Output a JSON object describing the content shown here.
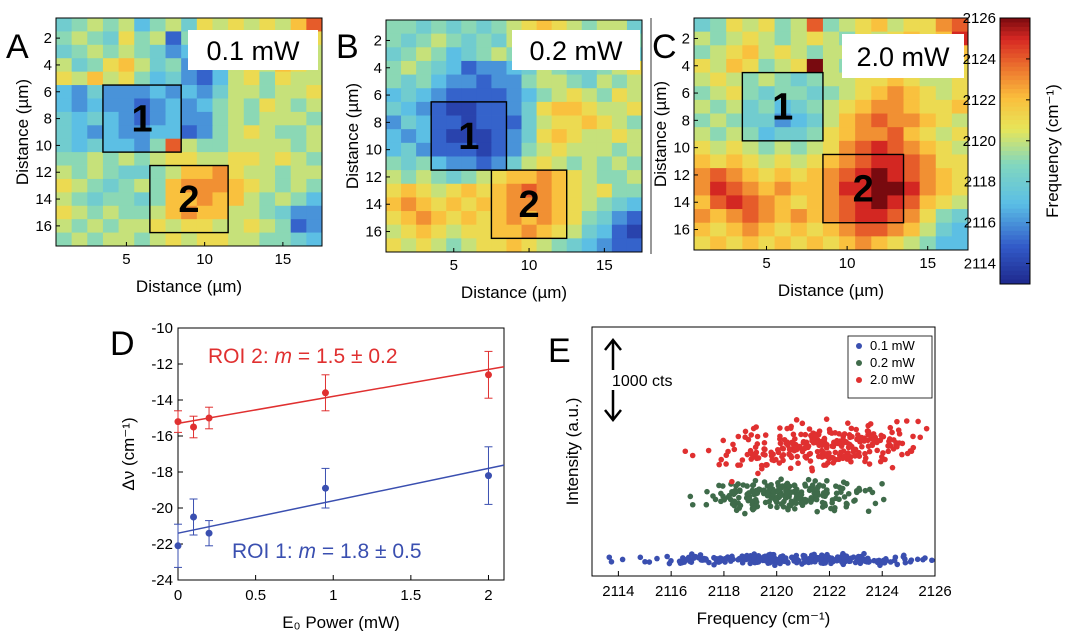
{
  "chart_data": [
    {
      "panel": "A",
      "type": "heatmap",
      "label": "0.1 mW",
      "xlabel": "Distance (µm)",
      "ylabel": "Distance (µm)",
      "xticks": [
        5,
        10,
        15
      ],
      "yticks": [
        2,
        4,
        6,
        8,
        10,
        12,
        14,
        16
      ],
      "roi_labels": [
        "1",
        "2"
      ],
      "grid": [
        [
          2118,
          2119,
          2120,
          2119,
          2120,
          2117,
          2119,
          2120,
          2118,
          2121,
          2120,
          2121,
          2120,
          2121,
          2120,
          2122,
          2124
        ],
        [
          2119,
          2120,
          2119,
          2118,
          2121,
          2119,
          2120,
          2115,
          2119,
          2120,
          2120,
          2120,
          2121,
          2119,
          2120,
          2120,
          2121
        ],
        [
          2118,
          2119,
          2120,
          2119,
          2120,
          2119,
          2118,
          2116,
          2117,
          2118,
          2120,
          2121,
          2119,
          2120,
          2121,
          2119,
          2120
        ],
        [
          2120,
          2118,
          2119,
          2121,
          2122,
          2120,
          2118,
          2119,
          2116,
          2115,
          2117,
          2120,
          2121,
          2120,
          2122,
          2121,
          2120
        ],
        [
          2121,
          2120,
          2122,
          2120,
          2121,
          2119,
          2117,
          2118,
          2116,
          2115,
          2117,
          2120,
          2121,
          2119,
          2121,
          2120,
          2120
        ],
        [
          2117,
          2116,
          2118,
          2116,
          2116,
          2116,
          2117,
          2116,
          2117,
          2116,
          2118,
          2120,
          2120,
          2119,
          2120,
          2120,
          2121
        ],
        [
          2117,
          2116,
          2117,
          2116,
          2116,
          2115,
          2116,
          2117,
          2116,
          2117,
          2119,
          2120,
          2119,
          2121,
          2120,
          2119,
          2120
        ],
        [
          2118,
          2117,
          2118,
          2117,
          2116,
          2115,
          2116,
          2117,
          2116,
          2116,
          2119,
          2120,
          2119,
          2120,
          2120,
          2120,
          2119
        ],
        [
          2118,
          2117,
          2116,
          2117,
          2116,
          2116,
          2117,
          2117,
          2115,
          2116,
          2119,
          2120,
          2121,
          2120,
          2119,
          2119,
          2120
        ],
        [
          2118,
          2117,
          2118,
          2117,
          2117,
          2116,
          2119,
          2124,
          2120,
          2119,
          2119,
          2120,
          2120,
          2120,
          2120,
          2119,
          2120
        ],
        [
          2119,
          2119,
          2120,
          2119,
          2120,
          2119,
          2120,
          2121,
          2121,
          2120,
          2120,
          2121,
          2121,
          2120,
          2121,
          2120,
          2119
        ],
        [
          2120,
          2119,
          2120,
          2119,
          2118,
          2118,
          2119,
          2120,
          2122,
          2122,
          2123,
          2121,
          2120,
          2120,
          2119,
          2120,
          2120
        ],
        [
          2121,
          2120,
          2119,
          2118,
          2119,
          2120,
          2119,
          2122,
          2123,
          2123,
          2123,
          2122,
          2121,
          2120,
          2119,
          2120,
          2119
        ],
        [
          2120,
          2119,
          2118,
          2119,
          2119,
          2118,
          2119,
          2122,
          2122,
          2123,
          2122,
          2122,
          2120,
          2119,
          2120,
          2119,
          2117
        ],
        [
          2121,
          2120,
          2119,
          2120,
          2119,
          2119,
          2120,
          2122,
          2123,
          2122,
          2122,
          2120,
          2120,
          2119,
          2118,
          2116,
          2116
        ],
        [
          2120,
          2119,
          2120,
          2119,
          2120,
          2120,
          2121,
          2120,
          2121,
          2121,
          2120,
          2120,
          2121,
          2120,
          2119,
          2115,
          2116
        ],
        [
          2119,
          2120,
          2119,
          2120,
          2120,
          2119,
          2120,
          2121,
          2120,
          2121,
          2121,
          2120,
          2120,
          2119,
          2119,
          2118,
          2117
        ]
      ]
    },
    {
      "panel": "B",
      "type": "heatmap",
      "label": "0.2 mW",
      "xlabel": "Distance (µm)",
      "ylabel": "Distance (µm)",
      "xticks": [
        5,
        10,
        15
      ],
      "yticks": [
        2,
        4,
        6,
        8,
        10,
        12,
        14,
        16
      ],
      "roi_labels": [
        "1",
        "2"
      ],
      "grid": [
        [
          2119,
          2119,
          2118,
          2119,
          2118,
          2119,
          2118,
          2119,
          2120,
          2121,
          2122,
          2121,
          2120,
          2119,
          2120,
          2120,
          2118
        ],
        [
          2119,
          2118,
          2119,
          2120,
          2119,
          2118,
          2119,
          2118,
          2120,
          2121,
          2120,
          2121,
          2120,
          2120,
          2119,
          2120,
          2119
        ],
        [
          2118,
          2119,
          2120,
          2119,
          2117,
          2118,
          2119,
          2120,
          2119,
          2120,
          2121,
          2121,
          2119,
          2119,
          2118,
          2119,
          2118
        ],
        [
          2119,
          2120,
          2119,
          2118,
          2117,
          2115,
          2116,
          2116,
          2117,
          2118,
          2120,
          2119,
          2118,
          2118,
          2119,
          2120,
          2121
        ],
        [
          2119,
          2118,
          2119,
          2117,
          2116,
          2116,
          2115,
          2116,
          2116,
          2119,
          2120,
          2120,
          2119,
          2118,
          2120,
          2119,
          2120
        ],
        [
          2117,
          2118,
          2117,
          2116,
          2115,
          2115,
          2115,
          2115,
          2116,
          2117,
          2119,
          2120,
          2121,
          2120,
          2119,
          2121,
          2120
        ],
        [
          2118,
          2117,
          2116,
          2115,
          2114,
          2114,
          2115,
          2115,
          2116,
          2118,
          2121,
          2122,
          2122,
          2121,
          2120,
          2120,
          2121
        ],
        [
          2116,
          2118,
          2117,
          2115,
          2115,
          2114,
          2115,
          2115,
          2115,
          2118,
          2120,
          2121,
          2121,
          2122,
          2121,
          2120,
          2119
        ],
        [
          2117,
          2116,
          2117,
          2115,
          2114,
          2114,
          2114,
          2115,
          2116,
          2118,
          2121,
          2122,
          2121,
          2120,
          2120,
          2121,
          2120
        ],
        [
          2117,
          2118,
          2116,
          2115,
          2115,
          2115,
          2114,
          2115,
          2116,
          2119,
          2120,
          2121,
          2120,
          2120,
          2120,
          2119,
          2120
        ],
        [
          2119,
          2118,
          2119,
          2117,
          2116,
          2116,
          2115,
          2116,
          2118,
          2120,
          2121,
          2120,
          2119,
          2120,
          2119,
          2120,
          2119
        ],
        [
          2120,
          2119,
          2120,
          2119,
          2118,
          2119,
          2120,
          2121,
          2122,
          2122,
          2123,
          2122,
          2121,
          2120,
          2119,
          2119,
          2120
        ],
        [
          2121,
          2122,
          2121,
          2120,
          2121,
          2122,
          2121,
          2122,
          2123,
          2124,
          2123,
          2122,
          2121,
          2120,
          2121,
          2119,
          2119
        ],
        [
          2122,
          2123,
          2122,
          2121,
          2122,
          2121,
          2122,
          2122,
          2123,
          2123,
          2123,
          2122,
          2121,
          2120,
          2119,
          2118,
          2117
        ],
        [
          2121,
          2122,
          2123,
          2122,
          2121,
          2122,
          2121,
          2122,
          2123,
          2122,
          2123,
          2122,
          2121,
          2119,
          2118,
          2116,
          2115
        ],
        [
          2120,
          2121,
          2122,
          2121,
          2120,
          2121,
          2121,
          2122,
          2122,
          2123,
          2122,
          2121,
          2120,
          2118,
          2117,
          2115,
          2114
        ],
        [
          2121,
          2120,
          2121,
          2120,
          2119,
          2120,
          2121,
          2121,
          2122,
          2121,
          2120,
          2119,
          2118,
          2117,
          2116,
          2115,
          2115
        ]
      ]
    },
    {
      "panel": "C",
      "type": "heatmap",
      "label": "2.0 mW",
      "xlabel": "Distance (µm)",
      "ylabel": "Distance (µm)",
      "xticks": [
        5,
        10,
        15
      ],
      "yticks": [
        2,
        4,
        6,
        8,
        10,
        12,
        14,
        16
      ],
      "roi_labels": [
        "1",
        "2"
      ],
      "grid": [
        [
          2118,
          2119,
          2121,
          2120,
          2121,
          2119,
          2120,
          2124,
          2119,
          2120,
          2121,
          2122,
          2120,
          2121,
          2121,
          2123,
          2124
        ],
        [
          2120,
          2119,
          2120,
          2121,
          2120,
          2119,
          2120,
          2121,
          2120,
          2119,
          2121,
          2120,
          2121,
          2122,
          2121,
          2122,
          2125
        ],
        [
          2119,
          2120,
          2121,
          2122,
          2120,
          2121,
          2120,
          2119,
          2120,
          2120,
          2121,
          2119,
          2122,
          2121,
          2120,
          2121,
          2122
        ],
        [
          2121,
          2120,
          2122,
          2121,
          2119,
          2120,
          2121,
          2126,
          2120,
          2119,
          2120,
          2121,
          2120,
          2122,
          2121,
          2120,
          2121
        ],
        [
          2120,
          2121,
          2120,
          2119,
          2120,
          2119,
          2118,
          2119,
          2120,
          2120,
          2121,
          2121,
          2122,
          2121,
          2120,
          2120,
          2121
        ],
        [
          2119,
          2120,
          2121,
          2119,
          2118,
          2119,
          2119,
          2118,
          2119,
          2120,
          2121,
          2122,
          2123,
          2122,
          2121,
          2120,
          2121
        ],
        [
          2120,
          2119,
          2120,
          2118,
          2119,
          2117,
          2118,
          2119,
          2120,
          2121,
          2122,
          2123,
          2123,
          2122,
          2121,
          2121,
          2122
        ],
        [
          2119,
          2120,
          2119,
          2118,
          2118,
          2116,
          2117,
          2118,
          2120,
          2122,
          2123,
          2124,
          2123,
          2123,
          2122,
          2121,
          2120
        ],
        [
          2120,
          2119,
          2120,
          2119,
          2117,
          2118,
          2118,
          2119,
          2121,
          2122,
          2123,
          2123,
          2124,
          2122,
          2121,
          2120,
          2121
        ],
        [
          2121,
          2120,
          2121,
          2120,
          2119,
          2120,
          2119,
          2120,
          2121,
          2123,
          2124,
          2125,
          2124,
          2123,
          2122,
          2121,
          2120
        ],
        [
          2122,
          2121,
          2122,
          2121,
          2120,
          2121,
          2120,
          2121,
          2122,
          2123,
          2124,
          2125,
          2125,
          2124,
          2123,
          2121,
          2121
        ],
        [
          2123,
          2124,
          2123,
          2122,
          2121,
          2122,
          2121,
          2122,
          2123,
          2124,
          2125,
          2126,
          2125,
          2124,
          2123,
          2122,
          2121
        ],
        [
          2123,
          2125,
          2124,
          2123,
          2122,
          2123,
          2122,
          2122,
          2123,
          2125,
          2125,
          2126,
          2126,
          2125,
          2123,
          2122,
          2121
        ],
        [
          2122,
          2124,
          2125,
          2124,
          2123,
          2122,
          2121,
          2122,
          2123,
          2124,
          2125,
          2126,
          2125,
          2124,
          2122,
          2121,
          2120
        ],
        [
          2123,
          2122,
          2123,
          2124,
          2123,
          2122,
          2123,
          2122,
          2123,
          2124,
          2125,
          2125,
          2124,
          2123,
          2121,
          2119,
          2118
        ],
        [
          2122,
          2121,
          2122,
          2123,
          2122,
          2121,
          2122,
          2121,
          2122,
          2123,
          2124,
          2124,
          2123,
          2122,
          2120,
          2118,
          2117
        ],
        [
          2121,
          2122,
          2121,
          2122,
          2121,
          2122,
          2121,
          2122,
          2121,
          2122,
          2123,
          2122,
          2121,
          2120,
          2119,
          2117,
          2117
        ]
      ]
    },
    {
      "panel": "colorbar",
      "type": "heatmap",
      "colorbar_label": "Frequency (cm⁻¹)",
      "range": [
        2113,
        2126
      ],
      "ticks": [
        2114,
        2116,
        2118,
        2120,
        2122,
        2124,
        2126
      ]
    },
    {
      "panel": "D",
      "type": "scatter",
      "xlabel": "E₀ Power (mW)",
      "ylabel": "Δν (cm⁻¹)",
      "xlim": [
        0,
        2.1
      ],
      "ylim": [
        -24,
        -10
      ],
      "xticks": [
        0,
        0.5,
        1,
        1.5,
        2
      ],
      "yticks": [
        -10,
        -12,
        -14,
        -16,
        -18,
        -20,
        -22,
        -24
      ],
      "series": [
        {
          "name": "ROI 2",
          "annotation_prefix": "ROI 2: ",
          "annotation_var": "m",
          "annotation_value": " = 1.5 ± 0.2",
          "color": "#e03030",
          "x": [
            0,
            0.1,
            0.2,
            0.95,
            2.0
          ],
          "y": [
            -15.2,
            -15.5,
            -15.0,
            -13.6,
            -12.6
          ],
          "err": [
            0.6,
            0.6,
            0.6,
            1.0,
            1.3
          ],
          "fit": {
            "slope": 1.5,
            "intercept": -15.3
          }
        },
        {
          "name": "ROI 1",
          "annotation_prefix": "ROI 1: ",
          "annotation_var": "m",
          "annotation_value": " = 1.8 ± 0.5",
          "color": "#3a4fb0",
          "x": [
            0,
            0.1,
            0.2,
            0.95,
            2.0
          ],
          "y": [
            -22.1,
            -20.5,
            -21.4,
            -18.9,
            -18.2
          ],
          "err": [
            1.2,
            1.0,
            0.7,
            1.1,
            1.6
          ],
          "fit": {
            "slope": 1.8,
            "intercept": -21.4
          }
        }
      ]
    },
    {
      "panel": "E",
      "type": "scatter",
      "xlabel": "Frequency (cm⁻¹)",
      "ylabel": "Intensity (a.u.)",
      "xlim": [
        2113,
        2126
      ],
      "xticks": [
        2114,
        2116,
        2118,
        2120,
        2122,
        2124,
        2126
      ],
      "scale_bar_label": "1000 cts",
      "legend_position": "top-right",
      "series": [
        {
          "name": "0.1 mW",
          "color": "#3a4fb0",
          "count": 260,
          "center": 2120.5,
          "spread": 2.6,
          "level": 300,
          "noise": 70
        },
        {
          "name": "0.2 mW",
          "color": "#3f6b4a",
          "count": 230,
          "center": 2120.3,
          "spread": 1.5,
          "level": 1450,
          "noise": 230
        },
        {
          "name": "2.0 mW",
          "color": "#e03030",
          "count": 280,
          "center": 2121.8,
          "spread": 2.0,
          "level": 2350,
          "noise": 330
        }
      ]
    }
  ]
}
